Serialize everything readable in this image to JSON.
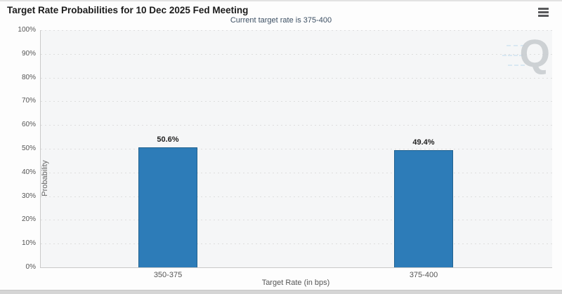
{
  "header": {
    "title": "Target Rate Probabilities for 10 Dec 2025 Fed Meeting",
    "subtitle": "Current target rate is 375-400"
  },
  "menu": {
    "icon": "hamburger-menu-icon"
  },
  "chart_data": {
    "type": "bar",
    "title": "Target Rate Probabilities for 10 Dec 2025 Fed Meeting",
    "subtitle": "Current target rate is 375-400",
    "categories": [
      "350-375",
      "375-400"
    ],
    "values": [
      50.6,
      49.4
    ],
    "data_labels": [
      "50.6%",
      "49.4%"
    ],
    "xlabel": "Target Rate (in bps)",
    "ylabel": "Probability",
    "ylim": [
      0,
      100
    ],
    "ytick_step": 10,
    "ytick_labels": [
      "0%",
      "10%",
      "20%",
      "30%",
      "40%",
      "50%",
      "60%",
      "70%",
      "80%",
      "90%",
      "100%"
    ],
    "grid": "horizontal-dotted",
    "legend": "none",
    "colors": {
      "bar_fill": "#2d7cb8",
      "bar_border": "#22628f",
      "plot_background": "#f5f6f7",
      "subtitle_text": "#3c4f63",
      "axis_line": "#c9c9c9"
    },
    "watermark_letter": "Q"
  }
}
